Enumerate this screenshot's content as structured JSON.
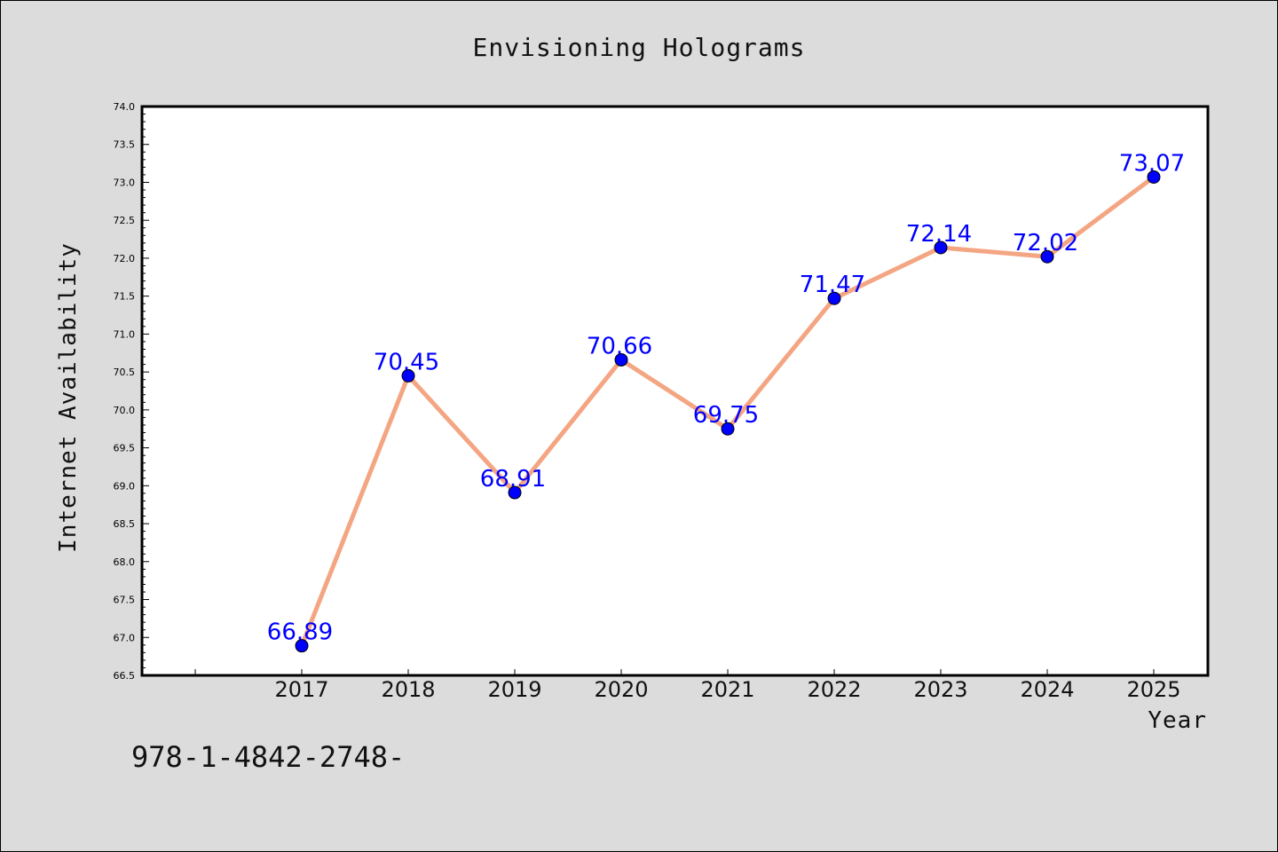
{
  "chart_data": {
    "type": "line",
    "title": "Envisioning Holograms",
    "xlabel": "Year",
    "ylabel": "Internet Availability",
    "x": [
      "2017",
      "2018",
      "2019",
      "2020",
      "2021",
      "2022",
      "2023",
      "2024",
      "2025"
    ],
    "series": [
      {
        "values": [
          66.89,
          70.45,
          68.91,
          70.66,
          69.75,
          71.47,
          72.14,
          72.02,
          73.07
        ]
      }
    ],
    "data_labels": [
      "66.89",
      "70.45",
      "68.91",
      "70.66",
      "69.75",
      "71.47",
      "72.14",
      "72.02",
      "73.07"
    ],
    "ylim": [
      66.5,
      74.0
    ],
    "yticks": [
      "66.5",
      "67.0",
      "67.5",
      "68.0",
      "68.5",
      "69.0",
      "69.5",
      "70.0",
      "70.5",
      "71.0",
      "71.5",
      "72.0",
      "72.5",
      "73.0",
      "73.5",
      "74.0"
    ],
    "grid": false,
    "legend": "none",
    "colors": {
      "line": "#f4a582",
      "marker": "#0000ff",
      "label": "#0000ff",
      "background": "#dcdcdc",
      "plot_background": "#ffffff"
    }
  },
  "footer_text": "978-1-4842-2748-"
}
